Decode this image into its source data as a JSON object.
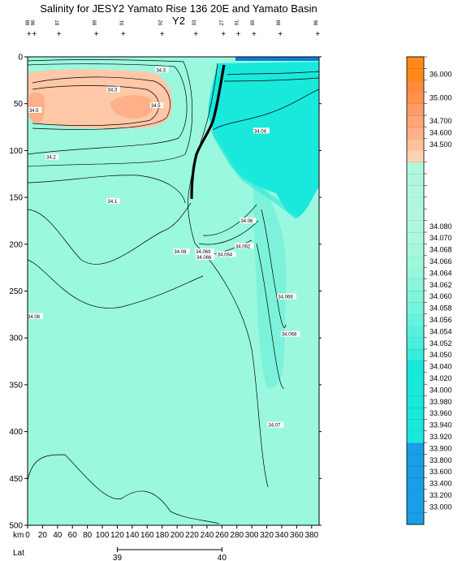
{
  "chart_data": {
    "type": "heatmap",
    "title": "Salinity for JESY2 Yamato Rise 136 20E and Yamato Basin Y2",
    "x_unit_label": "km",
    "lat_label": "Lat",
    "xlim": [
      0,
      390
    ],
    "ylim": [
      500,
      0
    ],
    "x_ticks": [
      0,
      20,
      40,
      60,
      80,
      100,
      120,
      140,
      160,
      180,
      200,
      220,
      240,
      260,
      280,
      300,
      320,
      340,
      360,
      380
    ],
    "y_ticks": [
      0,
      50,
      100,
      150,
      200,
      250,
      300,
      350,
      400,
      450,
      500
    ],
    "lat_ticks": [
      {
        "label": "39",
        "km": 120
      },
      {
        "label": "40",
        "km": 260
      }
    ],
    "stations": [
      {
        "km": 2,
        "label": "88"
      },
      {
        "km": 9,
        "label": "86"
      },
      {
        "km": 42,
        "label": "87"
      },
      {
        "km": 92,
        "label": "89"
      },
      {
        "km": 128,
        "label": "91"
      },
      {
        "km": 180,
        "label": "92"
      },
      {
        "km": 225,
        "label": "93"
      },
      {
        "km": 262,
        "label": "27"
      },
      {
        "km": 282,
        "label": "91"
      },
      {
        "km": 303,
        "label": "89"
      },
      {
        "km": 338,
        "label": "88"
      },
      {
        "km": 388,
        "label": "86"
      }
    ],
    "colorbar": [
      {
        "label": "",
        "color": "#1a9ee8"
      },
      {
        "label": "33.000",
        "color": "#1a9ee8"
      },
      {
        "label": "33.200",
        "color": "#1a9ee8"
      },
      {
        "label": "33.400",
        "color": "#1a9ee8"
      },
      {
        "label": "33.600",
        "color": "#1a9ee8"
      },
      {
        "label": "33.800",
        "color": "#1a9ee8"
      },
      {
        "label": "33.900",
        "color": "#1a9ee8"
      },
      {
        "label": "33.920",
        "color": "#19e8dc"
      },
      {
        "label": "33.940",
        "color": "#19e8dc"
      },
      {
        "label": "33.960",
        "color": "#19e8dc"
      },
      {
        "label": "33.980",
        "color": "#19e8dc"
      },
      {
        "label": "34.000",
        "color": "#19e8dc"
      },
      {
        "label": "34.020",
        "color": "#19e8dc"
      },
      {
        "label": "34.040",
        "color": "#19e8dc"
      },
      {
        "label": "34.050",
        "color": "#38ecdc"
      },
      {
        "label": "34.052",
        "color": "#4aeedc"
      },
      {
        "label": "34.054",
        "color": "#58f0dc"
      },
      {
        "label": "34.056",
        "color": "#66f2dc"
      },
      {
        "label": "34.058",
        "color": "#74f4dc"
      },
      {
        "label": "34.060",
        "color": "#80f5dc"
      },
      {
        "label": "34.062",
        "color": "#8cf6dc"
      },
      {
        "label": "34.064",
        "color": "#96f7dc"
      },
      {
        "label": "34.066",
        "color": "#9ff7dc"
      },
      {
        "label": "34.068",
        "color": "#a6f8dc"
      },
      {
        "label": "34.070",
        "color": "#acf8dc"
      },
      {
        "label": "34.080",
        "color": "#b0f8dc"
      },
      {
        "label": "",
        "color": "#b0f8dc"
      },
      {
        "label": "",
        "color": "#b0f8dc"
      },
      {
        "label": "",
        "color": "#b0f8dc"
      },
      {
        "label": "",
        "color": "#b0f8dc"
      },
      {
        "label": "",
        "color": "#b0f8dc"
      },
      {
        "label": "",
        "color": "#ffd2b4"
      },
      {
        "label": "34.500",
        "color": "#ffc09a"
      },
      {
        "label": "34.600",
        "color": "#ffb088"
      },
      {
        "label": "34.700",
        "color": "#ffa678"
      },
      {
        "label": "",
        "color": "#ff9c66"
      },
      {
        "label": "35.000",
        "color": "#ff9250"
      },
      {
        "label": "",
        "color": "#ff8a3a"
      },
      {
        "label": "36.000",
        "color": "#ff8a1a"
      },
      {
        "label": "",
        "color": "#ff8a1a"
      }
    ],
    "contour_labels": [
      {
        "km": 172,
        "depth": 15,
        "text": "34.3"
      },
      {
        "km": 107,
        "depth": 36,
        "text": "34.3"
      },
      {
        "km": 2,
        "depth": 58,
        "text": "34.5"
      },
      {
        "km": 165,
        "depth": 53,
        "text": "34.5"
      },
      {
        "km": 25,
        "depth": 108,
        "text": "34.2"
      },
      {
        "km": 107,
        "depth": 155,
        "text": "34.1"
      },
      {
        "km": 303,
        "depth": 80,
        "text": "34.04"
      },
      {
        "km": 285,
        "depth": 176,
        "text": "34.06"
      },
      {
        "km": 278,
        "depth": 203,
        "text": "34.062"
      },
      {
        "km": 196,
        "depth": 209,
        "text": "34.08"
      },
      {
        "km": 225,
        "depth": 209,
        "text": "34.069"
      },
      {
        "km": 226,
        "depth": 215,
        "text": "34.066"
      },
      {
        "km": 254,
        "depth": 212,
        "text": "34.064"
      },
      {
        "km": 335,
        "depth": 257,
        "text": "34.066"
      },
      {
        "km": 340,
        "depth": 297,
        "text": "34.068"
      },
      {
        "km": 0,
        "depth": 278,
        "text": "34.08"
      },
      {
        "km": 322,
        "depth": 394,
        "text": "34.07"
      }
    ]
  }
}
